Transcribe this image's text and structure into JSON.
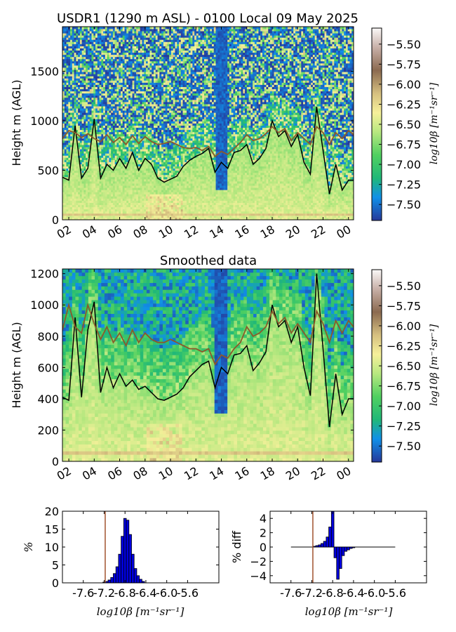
{
  "chart_data": [
    {
      "type": "heatmap",
      "title": "USDR1 (1290 m ASL) - 0100 Local 09 May 2025",
      "ylabel": "Height m (AGL)",
      "xticks": [
        "02",
        "04",
        "06",
        "08",
        "10",
        "12",
        "14",
        "16",
        "18",
        "20",
        "22",
        "00"
      ],
      "xlim": [
        1.5,
        24.4
      ],
      "ylim": [
        0,
        1950
      ],
      "yticks": [
        0,
        500,
        1000,
        1500
      ],
      "colorbar": {
        "label": "log10β [m⁻¹sr⁻¹]",
        "range": [
          -7.7,
          -5.3
        ],
        "ticks": [
          "−5.50",
          "−5.75",
          "−6.00",
          "−6.25",
          "−6.50",
          "−6.75",
          "−7.00",
          "−7.25",
          "−7.50"
        ]
      },
      "series": [
        {
          "color": "#000000",
          "x": [
            1.5,
            2.0,
            2.5,
            3.0,
            3.5,
            4.0,
            4.5,
            5.0,
            5.5,
            6.0,
            6.5,
            7.0,
            7.5,
            8.0,
            8.5,
            9.0,
            9.5,
            10.0,
            10.5,
            11.0,
            11.5,
            12.0,
            12.5,
            13.0,
            13.5,
            14.0,
            14.5,
            15.0,
            15.5,
            16.0,
            16.5,
            17.0,
            17.5,
            18.0,
            18.5,
            19.0,
            19.5,
            20.0,
            20.5,
            21.0,
            21.5,
            22.0,
            22.5,
            23.0,
            23.5,
            24.0,
            24.4
          ],
          "values": [
            430,
            400,
            950,
            420,
            520,
            1020,
            420,
            560,
            500,
            620,
            520,
            680,
            500,
            620,
            560,
            420,
            380,
            410,
            440,
            540,
            600,
            640,
            670,
            720,
            480,
            580,
            520,
            680,
            700,
            760,
            560,
            620,
            720,
            1000,
            840,
            900,
            740,
            860,
            580,
            460,
            1140,
            700,
            260,
            560,
            300,
            400,
            400
          ]
        },
        {
          "color": "#8b5a2b",
          "x": [
            1.5,
            2.0,
            2.5,
            3.0,
            3.5,
            4.0,
            4.5,
            5.0,
            5.5,
            6.0,
            6.5,
            7.0,
            7.5,
            8.0,
            8.5,
            9.0,
            9.5,
            10.0,
            10.5,
            11.0,
            11.5,
            12.0,
            12.5,
            13.0,
            13.5,
            14.0,
            14.5,
            15.0,
            15.5,
            16.0,
            16.5,
            17.0,
            17.5,
            18.0,
            18.5,
            19.0,
            19.5,
            20.0,
            20.5,
            21.0,
            21.5,
            22.0,
            22.5,
            23.0,
            23.5,
            24.0,
            24.4
          ],
          "values": [
            820,
            900,
            880,
            830,
            870,
            820,
            790,
            860,
            780,
            830,
            760,
            850,
            770,
            840,
            790,
            760,
            770,
            790,
            760,
            730,
            720,
            730,
            700,
            740,
            640,
            690,
            660,
            720,
            780,
            860,
            800,
            820,
            870,
            940,
            880,
            920,
            800,
            880,
            820,
            760,
            940,
            880,
            760,
            880,
            820,
            900,
            860
          ]
        }
      ]
    },
    {
      "type": "heatmap",
      "title": "Smoothed data",
      "ylabel": "Height m (AGL)",
      "xticks": [
        "02",
        "04",
        "06",
        "08",
        "10",
        "12",
        "14",
        "16",
        "18",
        "20",
        "22",
        "00"
      ],
      "xlim": [
        1.5,
        24.4
      ],
      "ylim": [
        0,
        1230
      ],
      "yticks": [
        0,
        200,
        400,
        600,
        800,
        1000,
        1200
      ],
      "colorbar": {
        "label": "log10β [m⁻¹sr⁻¹]",
        "range": [
          -7.7,
          -5.3
        ],
        "ticks": [
          "−5.50",
          "−5.75",
          "−6.00",
          "−6.25",
          "−6.50",
          "−6.75",
          "−7.00",
          "−7.25",
          "−7.50"
        ]
      },
      "series": [
        {
          "color": "#000000",
          "x": [
            1.5,
            2.0,
            2.5,
            3.0,
            3.5,
            4.0,
            4.5,
            5.0,
            5.5,
            6.0,
            6.5,
            7.0,
            7.5,
            8.0,
            8.5,
            9.0,
            9.5,
            10.0,
            10.5,
            11.0,
            11.5,
            12.0,
            12.5,
            13.0,
            13.5,
            14.0,
            14.5,
            15.0,
            15.5,
            16.0,
            16.5,
            17.0,
            17.5,
            18.0,
            18.5,
            19.0,
            19.5,
            20.0,
            20.5,
            21.0,
            21.5,
            22.0,
            22.5,
            23.0,
            23.5,
            24.0,
            24.4
          ],
          "values": [
            410,
            390,
            920,
            410,
            840,
            1020,
            440,
            600,
            470,
            560,
            480,
            520,
            460,
            480,
            440,
            400,
            390,
            410,
            430,
            470,
            540,
            580,
            620,
            640,
            470,
            600,
            560,
            680,
            690,
            740,
            580,
            630,
            700,
            1000,
            860,
            900,
            760,
            860,
            600,
            420,
            1200,
            720,
            220,
            560,
            300,
            400,
            400
          ]
        },
        {
          "color": "#8b5a2b",
          "x": [
            1.5,
            2.0,
            2.5,
            3.0,
            3.5,
            4.0,
            4.5,
            5.0,
            5.5,
            6.0,
            6.5,
            7.0,
            7.5,
            8.0,
            8.5,
            9.0,
            9.5,
            10.0,
            10.5,
            11.0,
            11.5,
            12.0,
            12.5,
            13.0,
            13.5,
            14.0,
            14.5,
            15.0,
            15.5,
            16.0,
            16.5,
            17.0,
            17.5,
            18.0,
            18.5,
            19.0,
            19.5,
            20.0,
            20.5,
            21.0,
            21.5,
            22.0,
            22.5,
            23.0,
            23.5,
            24.0,
            24.4
          ],
          "values": [
            840,
            1000,
            860,
            820,
            1000,
            880,
            780,
            860,
            760,
            820,
            740,
            840,
            760,
            820,
            780,
            760,
            760,
            780,
            760,
            740,
            720,
            720,
            700,
            720,
            620,
            680,
            660,
            720,
            760,
            860,
            800,
            820,
            860,
            960,
            880,
            920,
            820,
            880,
            820,
            760,
            960,
            880,
            760,
            900,
            820,
            900,
            860
          ]
        }
      ]
    },
    {
      "type": "bar",
      "xlabel": "log10β [m⁻¹sr⁻¹]",
      "ylabel": "%",
      "xlim": [
        -8.0,
        -5.0
      ],
      "ylim": [
        0,
        20
      ],
      "xticks": [
        "-7.6",
        "-7.2",
        "-6.8",
        "-6.4",
        "-6.0",
        "-5.6"
      ],
      "yticks": [
        0,
        5,
        10,
        15,
        20
      ],
      "vline": -7.18,
      "bar_width": 0.05,
      "x": [
        -7.2,
        -7.15,
        -7.1,
        -7.05,
        -7.0,
        -6.95,
        -6.9,
        -6.85,
        -6.8,
        -6.75,
        -6.7,
        -6.65,
        -6.6,
        -6.55,
        -6.5,
        -6.45
      ],
      "values": [
        0.2,
        0.4,
        0.8,
        1.5,
        2.6,
        4.5,
        8.0,
        13.0,
        18.0,
        17.5,
        13.5,
        8.0,
        4.0,
        2.0,
        1.0,
        0.4
      ]
    },
    {
      "type": "bar",
      "xlabel": "log10β [m⁻¹sr⁻¹]",
      "ylabel": "% diff",
      "xlim": [
        -8.0,
        -5.0
      ],
      "ylim": [
        -5,
        5
      ],
      "xticks": [
        "-7.6",
        "-7.2",
        "-6.8",
        "-6.4",
        "-6.0",
        "-5.6"
      ],
      "yticks": [
        -4,
        -2,
        0,
        2,
        4
      ],
      "vline": -7.18,
      "bar_width": 0.05,
      "x": [
        -7.15,
        -7.1,
        -7.05,
        -7.0,
        -6.95,
        -6.9,
        -6.85,
        -6.8,
        -6.75,
        -6.7,
        -6.65,
        -6.6,
        -6.55,
        -6.5,
        -6.45,
        -6.4
      ],
      "values": [
        0.1,
        0.2,
        0.3,
        0.5,
        0.8,
        1.4,
        2.8,
        5.0,
        -1.5,
        -4.5,
        -3.0,
        -1.2,
        -0.6,
        -0.4,
        -0.2,
        -0.1
      ]
    }
  ]
}
